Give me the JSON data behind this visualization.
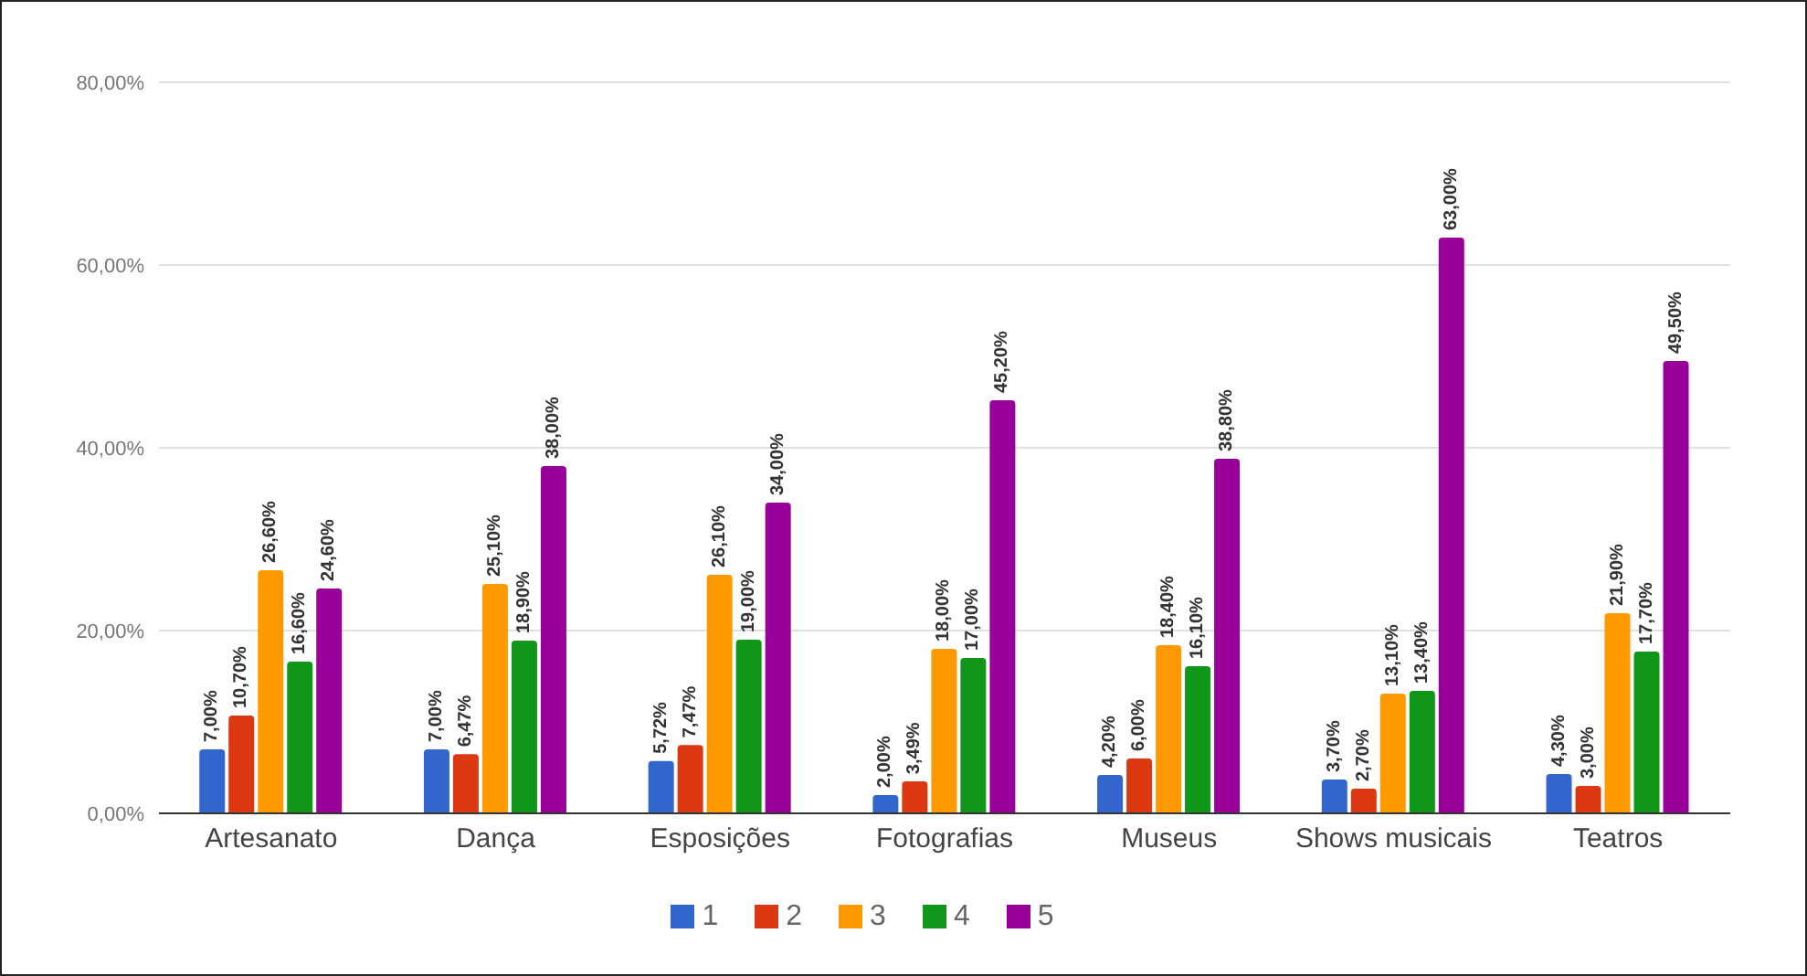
{
  "chart_data": {
    "type": "bar",
    "categories": [
      "Artesanato",
      "Dança",
      "Esposições",
      "Fotografias",
      "Museus",
      "Shows musicais",
      "Teatros"
    ],
    "series": [
      {
        "name": "1",
        "color": "#3366cc",
        "values": [
          7.0,
          7.0,
          5.72,
          2.0,
          4.2,
          3.7,
          4.3
        ],
        "value_labels": [
          "7,00%",
          "7,00%",
          "5,72%",
          "2,00%",
          "4,20%",
          "3,70%",
          "4,30%"
        ]
      },
      {
        "name": "2",
        "color": "#dc3912",
        "values": [
          10.7,
          6.47,
          7.47,
          3.49,
          6.0,
          2.7,
          3.0
        ],
        "value_labels": [
          "10,70%",
          "6,47%",
          "7,47%",
          "3,49%",
          "6,00%",
          "2,70%",
          "3,00%"
        ]
      },
      {
        "name": "3",
        "color": "#ff9900",
        "values": [
          26.6,
          25.1,
          26.1,
          18.0,
          18.4,
          13.1,
          21.9
        ],
        "value_labels": [
          "26,60%",
          "25,10%",
          "26,10%",
          "18,00%",
          "18,40%",
          "13,10%",
          "21,90%"
        ]
      },
      {
        "name": "4",
        "color": "#109618",
        "values": [
          16.6,
          18.9,
          19.0,
          17.0,
          16.1,
          13.4,
          17.7
        ],
        "value_labels": [
          "16,60%",
          "18,90%",
          "19,00%",
          "17,00%",
          "16,10%",
          "13,40%",
          "17,70%"
        ]
      },
      {
        "name": "5",
        "color": "#990099",
        "values": [
          24.6,
          38.0,
          34.0,
          45.2,
          38.8,
          63.0,
          49.5
        ],
        "value_labels": [
          "24,60%",
          "38,00%",
          "34,00%",
          "45,20%",
          "38,80%",
          "63,00%",
          "49,50%"
        ]
      }
    ],
    "ylim": [
      0,
      80
    ],
    "yticks": [
      {
        "value": 0,
        "label": "0,00%"
      },
      {
        "value": 20,
        "label": "20,00%"
      },
      {
        "value": 40,
        "label": "40,00%"
      },
      {
        "value": 60,
        "label": "60,00%"
      },
      {
        "value": 80,
        "label": "80,00%"
      }
    ],
    "grid": "y",
    "legend": "bottom"
  }
}
